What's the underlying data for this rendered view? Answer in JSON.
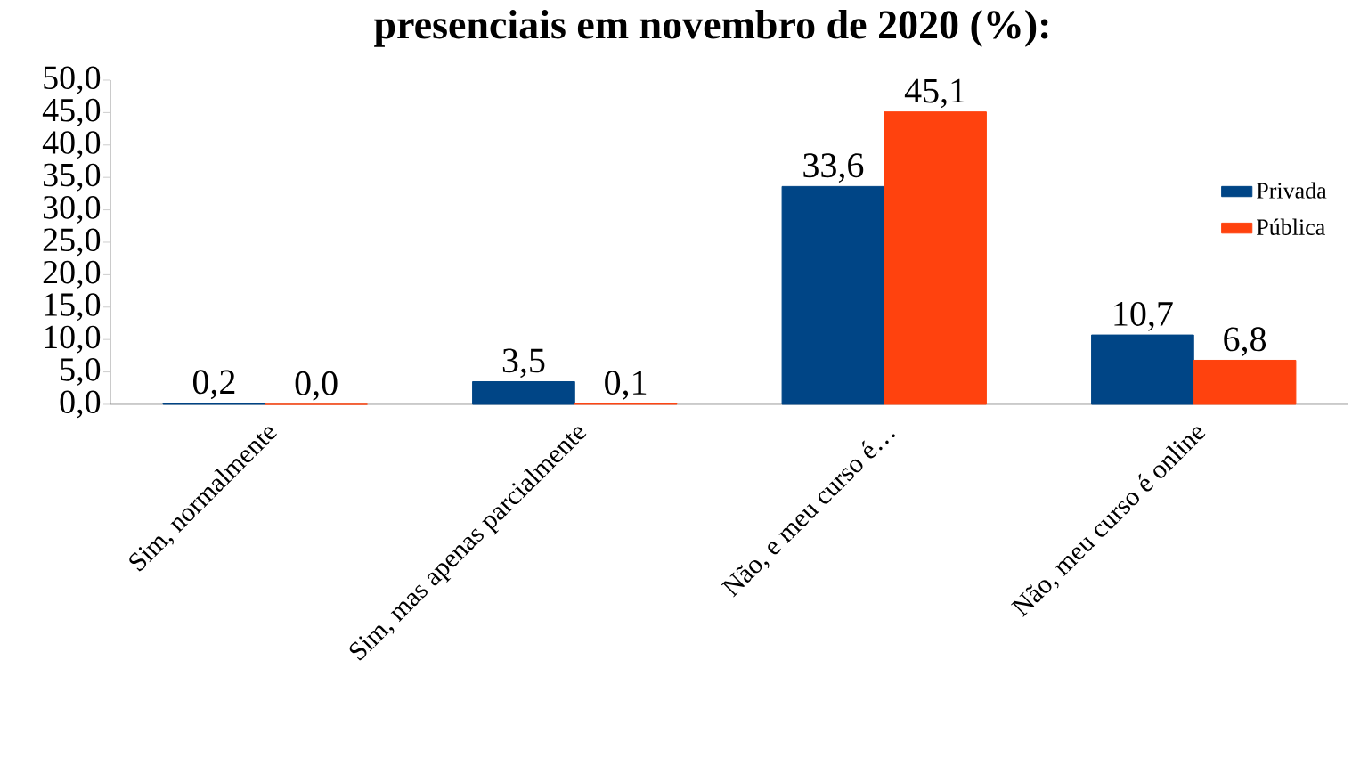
{
  "chart_data": {
    "type": "bar",
    "title": "presenciais em novembro de 2020 (%):",
    "categories": [
      "Sim, normalmente",
      "Sim, mas apenas parcialmente",
      "Não, e meu curso é…",
      "Não, meu curso é online"
    ],
    "series": [
      {
        "name": "Privada",
        "color": "#004586",
        "values": [
          0.2,
          3.5,
          33.6,
          10.7
        ],
        "value_labels": [
          "0,2",
          "3,5",
          "33,6",
          "10,7"
        ]
      },
      {
        "name": "Pública",
        "color": "#ff420e",
        "values": [
          0.0,
          0.1,
          45.1,
          6.8
        ],
        "value_labels": [
          "0,0",
          "0,1",
          "45,1",
          "6,8"
        ]
      }
    ],
    "ylim": [
      0,
      50
    ],
    "yticks": [
      {
        "value": 0,
        "label": "0,0"
      },
      {
        "value": 5,
        "label": "5,0"
      },
      {
        "value": 10,
        "label": "10,0"
      },
      {
        "value": 15,
        "label": "15,0"
      },
      {
        "value": 20,
        "label": "20,0"
      },
      {
        "value": 25,
        "label": "25,0"
      },
      {
        "value": 30,
        "label": "30,0"
      },
      {
        "value": 35,
        "label": "35,0"
      },
      {
        "value": 40,
        "label": "40,0"
      },
      {
        "value": 45,
        "label": "45,0"
      },
      {
        "value": 50,
        "label": "50,0"
      }
    ],
    "legend": "right",
    "grid": false
  }
}
